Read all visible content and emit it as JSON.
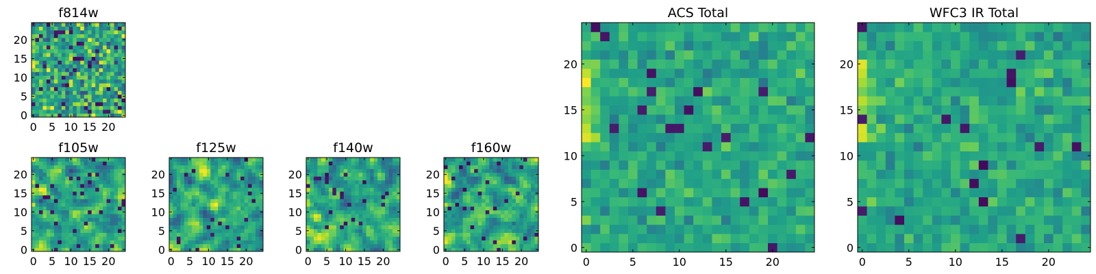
{
  "chart_data": [
    {
      "type": "heatmap",
      "title": "f814w",
      "grid_size": 25,
      "colormap": "viridis",
      "seed": 11,
      "spread": 1.2,
      "smooth": 0,
      "left_edge_bright": true,
      "dark_fraction": 0.06,
      "xticks": [
        0,
        5,
        10,
        15,
        20
      ],
      "yticks": [
        0,
        5,
        10,
        15,
        20
      ],
      "xlim": [
        0,
        24
      ],
      "ylim": [
        0,
        24
      ]
    },
    {
      "type": "heatmap",
      "title": "f105w",
      "grid_size": 25,
      "colormap": "viridis",
      "seed": 23,
      "spread": 0.9,
      "smooth": 1,
      "left_edge_bright": true,
      "dark_fraction": 0.04,
      "xticks": [
        0,
        5,
        10,
        15,
        20
      ],
      "yticks": [
        0,
        5,
        10,
        15,
        20
      ],
      "xlim": [
        0,
        24
      ],
      "ylim": [
        0,
        24
      ]
    },
    {
      "type": "heatmap",
      "title": "f125w",
      "grid_size": 25,
      "colormap": "viridis",
      "seed": 37,
      "spread": 0.9,
      "smooth": 1,
      "left_edge_bright": false,
      "dark_fraction": 0.04,
      "xticks": [
        0,
        5,
        10,
        15,
        20
      ],
      "yticks": [
        0,
        5,
        10,
        15,
        20
      ],
      "xlim": [
        0,
        24
      ],
      "ylim": [
        0,
        24
      ]
    },
    {
      "type": "heatmap",
      "title": "f140w",
      "grid_size": 25,
      "colormap": "viridis",
      "seed": 41,
      "spread": 0.9,
      "smooth": 1,
      "left_edge_bright": true,
      "dark_fraction": 0.04,
      "xticks": [
        0,
        5,
        10,
        15,
        20
      ],
      "yticks": [
        0,
        5,
        10,
        15,
        20
      ],
      "xlim": [
        0,
        24
      ],
      "ylim": [
        0,
        24
      ]
    },
    {
      "type": "heatmap",
      "title": "f160w",
      "grid_size": 25,
      "colormap": "viridis",
      "seed": 53,
      "spread": 0.9,
      "smooth": 1,
      "left_edge_bright": true,
      "dark_fraction": 0.04,
      "xticks": [
        0,
        5,
        10,
        15,
        20
      ],
      "yticks": [
        0,
        5,
        10,
        15,
        20
      ],
      "xlim": [
        0,
        24
      ],
      "ylim": [
        0,
        24
      ]
    },
    {
      "type": "heatmap",
      "title": "ACS Total",
      "grid_size": 25,
      "colormap": "viridis",
      "seed": 67,
      "spread": 0.55,
      "smooth": 0,
      "left_edge_bright": true,
      "dark_fraction": 0.035,
      "xticks": [
        0,
        5,
        10,
        15,
        20
      ],
      "yticks": [
        0,
        5,
        10,
        15,
        20
      ],
      "xlim": [
        0,
        24
      ],
      "ylim": [
        0,
        24
      ]
    },
    {
      "type": "heatmap",
      "title": "WFC3 IR Total",
      "grid_size": 25,
      "colormap": "viridis",
      "seed": 79,
      "spread": 0.55,
      "smooth": 0,
      "left_edge_bright": true,
      "dark_fraction": 0.035,
      "xticks": [
        0,
        5,
        10,
        15,
        20
      ],
      "yticks": [
        0,
        5,
        10,
        15,
        20
      ],
      "xlim": [
        0,
        24
      ],
      "ylim": [
        0,
        24
      ]
    }
  ]
}
